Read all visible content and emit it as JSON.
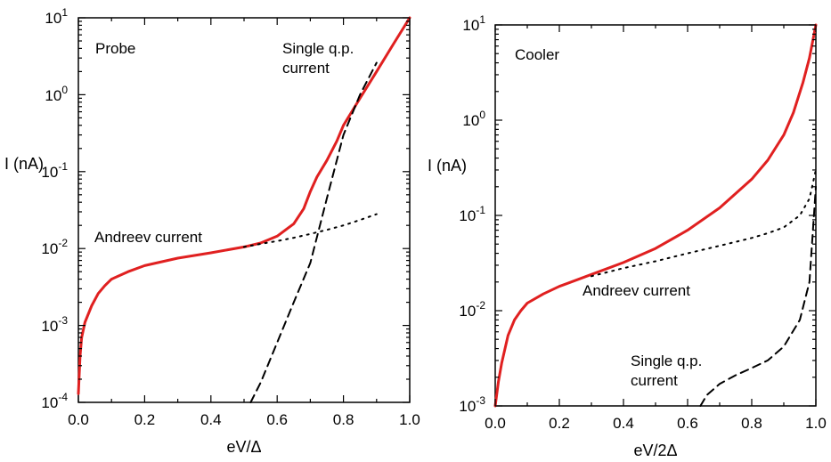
{
  "figure": {
    "panels": [
      {
        "panel_label": "Probe",
        "ylabel": "I (nA)",
        "xlabel": "eV/Δ",
        "annotations": {
          "andreev": "Andreev current",
          "single_line1": "Single q.p.",
          "single_line2": "current"
        },
        "x_ticks": [
          "0.0",
          "0.2",
          "0.4",
          "0.6",
          "0.8",
          "1.0"
        ],
        "y_ticks": [
          {
            "base": "10",
            "exp": "-4"
          },
          {
            "base": "10",
            "exp": "-3"
          },
          {
            "base": "10",
            "exp": "-2"
          },
          {
            "base": "10",
            "exp": "-1"
          },
          {
            "base": "10",
            "exp": "0"
          },
          {
            "base": "10",
            "exp": "1"
          }
        ]
      },
      {
        "panel_label": "Cooler",
        "ylabel": "I (nA)",
        "xlabel": "eV/2Δ",
        "annotations": {
          "andreev": "Andreev current",
          "single_line1": "Single q.p.",
          "single_line2": "current"
        },
        "x_ticks": [
          "0.0",
          "0.2",
          "0.4",
          "0.6",
          "0.8",
          "1.0"
        ],
        "y_ticks": [
          {
            "base": "10",
            "exp": "-3"
          },
          {
            "base": "10",
            "exp": "-2"
          },
          {
            "base": "10",
            "exp": "-1"
          },
          {
            "base": "10",
            "exp": "0"
          },
          {
            "base": "10",
            "exp": "1"
          }
        ]
      }
    ]
  },
  "chart_data": [
    {
      "type": "line",
      "title": "",
      "panel_label": "Probe",
      "xlabel": "eV/Δ",
      "ylabel": "I (nA)",
      "xlim": [
        0,
        1
      ],
      "ylim": [
        0.0001,
        10
      ],
      "y_scale": "log",
      "grid": false,
      "series": [
        {
          "style": "solid",
          "color": "#e02020",
          "x": [
            0.0,
            0.005,
            0.01,
            0.02,
            0.04,
            0.06,
            0.08,
            0.1,
            0.15,
            0.2,
            0.3,
            0.4,
            0.5,
            0.55,
            0.6,
            0.65,
            0.68,
            0.7,
            0.72,
            0.75,
            0.78,
            0.8,
            0.85,
            0.9,
            0.95,
            1.0
          ],
          "y": [
            0.00013,
            0.0004,
            0.0007,
            0.0011,
            0.0018,
            0.0026,
            0.0033,
            0.004,
            0.005,
            0.006,
            0.0075,
            0.0088,
            0.0105,
            0.0118,
            0.0145,
            0.021,
            0.033,
            0.055,
            0.085,
            0.14,
            0.25,
            0.4,
            0.9,
            2.0,
            4.5,
            10
          ]
        },
        {
          "style": "dotted",
          "color": "#000000",
          "x": [
            0.5,
            0.55,
            0.6,
            0.65,
            0.7,
            0.75,
            0.8,
            0.85,
            0.9
          ],
          "y": [
            0.0105,
            0.0115,
            0.0125,
            0.0138,
            0.0155,
            0.0175,
            0.02,
            0.0235,
            0.028
          ]
        },
        {
          "style": "dashed",
          "color": "#000000",
          "x": [
            0.52,
            0.55,
            0.6,
            0.65,
            0.7,
            0.75,
            0.8,
            0.85,
            0.9
          ],
          "y": [
            0.0001,
            0.00018,
            0.0006,
            0.002,
            0.0065,
            0.045,
            0.3,
            1.0,
            2.6
          ]
        }
      ]
    },
    {
      "type": "line",
      "title": "",
      "panel_label": "Cooler",
      "xlabel": "eV/2Δ",
      "ylabel": "I (nA)",
      "xlim": [
        0,
        1
      ],
      "ylim": [
        0.001,
        10
      ],
      "y_scale": "log",
      "grid": false,
      "series": [
        {
          "style": "solid",
          "color": "#e02020",
          "x": [
            0.0,
            0.01,
            0.02,
            0.04,
            0.06,
            0.08,
            0.1,
            0.15,
            0.2,
            0.3,
            0.4,
            0.5,
            0.6,
            0.7,
            0.8,
            0.85,
            0.9,
            0.93,
            0.96,
            0.98,
            1.0
          ],
          "y": [
            0.001,
            0.0018,
            0.0028,
            0.0055,
            0.008,
            0.01,
            0.012,
            0.015,
            0.018,
            0.024,
            0.032,
            0.045,
            0.07,
            0.12,
            0.24,
            0.38,
            0.7,
            1.2,
            2.5,
            4.5,
            10
          ]
        },
        {
          "style": "dotted",
          "color": "#000000",
          "x": [
            0.3,
            0.4,
            0.5,
            0.6,
            0.7,
            0.8,
            0.85,
            0.9,
            0.95,
            0.98,
            1.0
          ],
          "y": [
            0.023,
            0.028,
            0.033,
            0.04,
            0.048,
            0.058,
            0.065,
            0.075,
            0.1,
            0.15,
            0.3
          ]
        },
        {
          "style": "dashed",
          "color": "#000000",
          "x": [
            0.64,
            0.66,
            0.7,
            0.75,
            0.8,
            0.85,
            0.9,
            0.95,
            0.98,
            1.0
          ],
          "y": [
            0.001,
            0.0013,
            0.0017,
            0.0021,
            0.0025,
            0.003,
            0.0042,
            0.008,
            0.02,
            0.2
          ]
        }
      ]
    }
  ]
}
